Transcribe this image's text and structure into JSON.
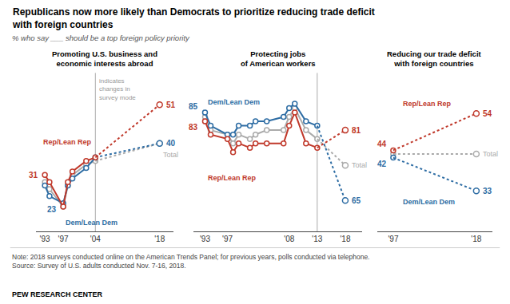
{
  "title": "Republicans now more likely than Democrats to prioritize reducing trade deficit\nwith foreign countries",
  "subtitle": "% who say ___ should be a top foreign policy priority",
  "annotations": [
    "Note: 2018 surveys conducted online on the American Trends Panel; for previous years, polls conducted via telephone.\nSource: Survey of U.S. adults conducted Nov. 7-16, 2018.",
    "PEW RESEARCH CENTER"
  ],
  "chart_data": [
    {
      "type": "line",
      "title": "Promoting U.S. business and\neconomic interests abroad",
      "xlim": [
        1991,
        2021
      ],
      "xticks": [
        {
          "value": 1993,
          "label": "'93"
        },
        {
          "value": 1997,
          "label": "'97"
        },
        {
          "value": 2004,
          "label": "'04"
        },
        {
          "value": 2018,
          "label": "'18"
        }
      ],
      "ylim": [
        15,
        60
      ],
      "tick_labels": "x",
      "grid": false,
      "mode_change_x": 2004,
      "mode_change_label": "indicates\nchanges in\nsurvey mode",
      "series": [
        {
          "name": "Rep/Lean Rep",
          "color": "#c0392b",
          "x": [
            1993,
            1994,
            1997,
            1998,
            1999,
            2002,
            2004,
            2018
          ],
          "values": [
            31,
            29,
            22,
            29,
            32,
            35,
            36,
            51
          ],
          "value_labels": [
            "31",
            null,
            null,
            null,
            null,
            null,
            null,
            "51"
          ]
        },
        {
          "name": "Dem/Lean Dem",
          "color": "#2e6da4",
          "x": [
            1993,
            1994,
            1997,
            1998,
            1999,
            2002,
            2004,
            2018
          ],
          "values": [
            28,
            25,
            23,
            28,
            30,
            33,
            36,
            40
          ],
          "value_labels": [
            null,
            null,
            "23",
            null,
            null,
            null,
            null,
            "40"
          ]
        },
        {
          "name": "Total",
          "color": "#aaaaaa",
          "x": [
            1993,
            1994,
            1997,
            1998,
            1999,
            2002,
            2004,
            2018
          ],
          "values": [
            29,
            27,
            22,
            28,
            31,
            34,
            35,
            40
          ]
        }
      ]
    },
    {
      "type": "line",
      "title": "Protecting jobs\nof American workers",
      "xlim": [
        1991,
        2021
      ],
      "xticks": [
        {
          "value": 1993,
          "label": "'93"
        },
        {
          "value": 1997,
          "label": "'97"
        },
        {
          "value": 2008,
          "label": "'08"
        },
        {
          "value": 2013,
          "label": "'13"
        },
        {
          "value": 2018,
          "label": "'18"
        }
      ],
      "ylim": [
        58,
        94
      ],
      "tick_labels": "x",
      "grid": false,
      "mode_change_x": 2013,
      "series": [
        {
          "name": "Rep/Lean Rep",
          "color": "#c0392b",
          "x": [
            1993,
            1994,
            1997,
            1998,
            1999,
            2001,
            2002,
            2004,
            2007,
            2008,
            2009,
            2011,
            2013,
            2018
          ],
          "values": [
            83,
            80,
            79,
            76,
            78,
            77,
            78,
            78,
            78,
            82,
            85,
            78,
            77,
            81
          ],
          "value_labels": [
            "83",
            null,
            null,
            null,
            null,
            null,
            null,
            null,
            null,
            null,
            null,
            null,
            null,
            "81"
          ]
        },
        {
          "name": "Dem/Lean Dem",
          "color": "#2e6da4",
          "x": [
            1993,
            1994,
            1997,
            1998,
            1999,
            2001,
            2002,
            2004,
            2007,
            2008,
            2009,
            2011,
            2013,
            2018
          ],
          "values": [
            85,
            82,
            80,
            80,
            82,
            82,
            83,
            83,
            84,
            86,
            87,
            83,
            82,
            65
          ],
          "value_labels": [
            "85",
            null,
            null,
            null,
            null,
            null,
            null,
            null,
            null,
            null,
            null,
            null,
            null,
            "65"
          ]
        },
        {
          "name": "Total",
          "color": "#aaaaaa",
          "x": [
            1993,
            1994,
            1997,
            1998,
            1999,
            2001,
            2002,
            2004,
            2007,
            2008,
            2009,
            2011,
            2013,
            2018
          ],
          "values": [
            84,
            81,
            80,
            78,
            80,
            79,
            80,
            81,
            81,
            84,
            86,
            81,
            79,
            73
          ]
        }
      ]
    },
    {
      "type": "line",
      "title": "Reducing our trade deficit\nwith foreign countries",
      "xlim": [
        1993,
        2022
      ],
      "xticks": [
        {
          "value": 1997,
          "label": "'97"
        },
        {
          "value": 2018,
          "label": "'18"
        }
      ],
      "ylim": [
        22,
        65
      ],
      "tick_labels": "x",
      "grid": false,
      "series": [
        {
          "name": "Rep/Lean Rep",
          "color": "#c0392b",
          "x": [
            1997,
            2018
          ],
          "values": [
            44,
            54
          ],
          "value_labels": [
            "44",
            "54"
          ]
        },
        {
          "name": "Dem/Lean Dem",
          "color": "#2e6da4",
          "x": [
            1997,
            2018
          ],
          "values": [
            42,
            33
          ],
          "value_labels": [
            "42",
            "33"
          ]
        },
        {
          "name": "Total",
          "color": "#aaaaaa",
          "x": [
            1997,
            2018
          ],
          "values": [
            43,
            43
          ]
        }
      ]
    }
  ]
}
